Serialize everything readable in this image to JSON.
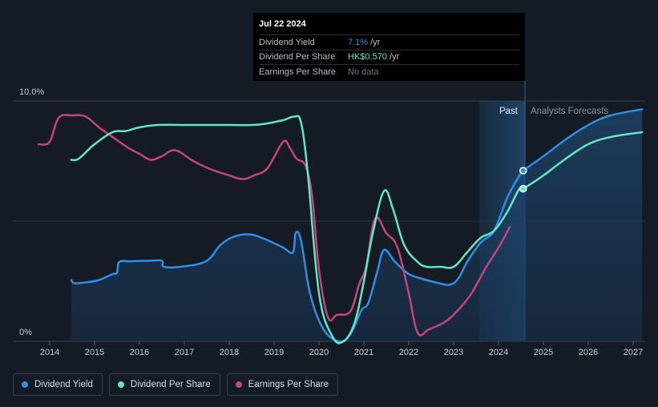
{
  "chart_data": {
    "type": "line",
    "y_axis": {
      "min": 0,
      "max": 10,
      "ticks": [
        "10.0%",
        "0%"
      ]
    },
    "x_ticks": [
      "2014",
      "2015",
      "2016",
      "2017",
      "2018",
      "2019",
      "2020",
      "2021",
      "2022",
      "2023",
      "2024",
      "2025",
      "2026",
      "2027"
    ],
    "regions": {
      "past_label": "Past",
      "forecast_label": "Analysts Forecasts"
    },
    "series": [
      {
        "name": "Dividend Yield",
        "color": "#2d8fe6",
        "fill": true,
        "points": [
          [
            2014.48,
            2.55
          ],
          [
            2014.55,
            2.42
          ],
          [
            2014.8,
            2.45
          ],
          [
            2015.1,
            2.55
          ],
          [
            2015.4,
            2.8
          ],
          [
            2015.5,
            2.85
          ],
          [
            2015.55,
            3.3
          ],
          [
            2015.8,
            3.33
          ],
          [
            2016.2,
            3.35
          ],
          [
            2016.5,
            3.35
          ],
          [
            2016.55,
            3.1
          ],
          [
            2017.0,
            3.12
          ],
          [
            2017.5,
            3.35
          ],
          [
            2017.8,
            4.0
          ],
          [
            2018.1,
            4.35
          ],
          [
            2018.45,
            4.45
          ],
          [
            2018.8,
            4.25
          ],
          [
            2019.2,
            3.9
          ],
          [
            2019.42,
            3.7
          ],
          [
            2019.48,
            4.5
          ],
          [
            2019.6,
            4.2
          ],
          [
            2019.8,
            2.0
          ],
          [
            2020.1,
            0.5
          ],
          [
            2020.45,
            0.0
          ],
          [
            2020.7,
            0.3
          ],
          [
            2020.95,
            1.3
          ],
          [
            2021.1,
            1.6
          ],
          [
            2021.3,
            2.9
          ],
          [
            2021.45,
            3.8
          ],
          [
            2021.7,
            3.3
          ],
          [
            2022.0,
            2.8
          ],
          [
            2022.3,
            2.6
          ],
          [
            2022.6,
            2.45
          ],
          [
            2022.9,
            2.35
          ],
          [
            2023.1,
            2.6
          ],
          [
            2023.3,
            3.3
          ],
          [
            2023.6,
            4.1
          ],
          [
            2023.9,
            4.6
          ],
          [
            2024.2,
            6.0
          ],
          [
            2024.5,
            7.0
          ],
          [
            2024.55,
            7.1
          ],
          [
            2025.0,
            7.7
          ],
          [
            2025.5,
            8.4
          ],
          [
            2026.0,
            9.0
          ],
          [
            2026.5,
            9.4
          ],
          [
            2027.2,
            9.65
          ]
        ]
      },
      {
        "name": "Dividend Per Share",
        "color": "#5ee8c8",
        "fill": false,
        "points": [
          [
            2014.48,
            7.55
          ],
          [
            2014.65,
            7.6
          ],
          [
            2015.0,
            8.2
          ],
          [
            2015.4,
            8.7
          ],
          [
            2015.7,
            8.75
          ],
          [
            2016.0,
            8.9
          ],
          [
            2016.4,
            9.0
          ],
          [
            2017.0,
            9.0
          ],
          [
            2017.5,
            9.0
          ],
          [
            2018.0,
            9.0
          ],
          [
            2018.5,
            9.0
          ],
          [
            2018.8,
            9.05
          ],
          [
            2019.2,
            9.2
          ],
          [
            2019.45,
            9.35
          ],
          [
            2019.6,
            9.1
          ],
          [
            2019.75,
            7.0
          ],
          [
            2020.0,
            2.0
          ],
          [
            2020.3,
            0.2
          ],
          [
            2020.55,
            0.0
          ],
          [
            2020.8,
            0.8
          ],
          [
            2021.0,
            2.5
          ],
          [
            2021.2,
            4.5
          ],
          [
            2021.45,
            6.25
          ],
          [
            2021.65,
            5.5
          ],
          [
            2021.9,
            4.0
          ],
          [
            2022.2,
            3.3
          ],
          [
            2022.4,
            3.1
          ],
          [
            2022.7,
            3.1
          ],
          [
            2023.0,
            3.1
          ],
          [
            2023.3,
            3.7
          ],
          [
            2023.6,
            4.3
          ],
          [
            2023.9,
            4.6
          ],
          [
            2024.2,
            5.4
          ],
          [
            2024.45,
            6.3
          ],
          [
            2024.55,
            6.35
          ],
          [
            2025.0,
            6.9
          ],
          [
            2025.5,
            7.6
          ],
          [
            2026.0,
            8.2
          ],
          [
            2026.5,
            8.5
          ],
          [
            2027.2,
            8.7
          ]
        ]
      },
      {
        "name": "Earnings Per Share",
        "color": "#c8427c",
        "fill": false,
        "points": [
          [
            2013.75,
            8.2
          ],
          [
            2014.0,
            8.3
          ],
          [
            2014.2,
            9.3
          ],
          [
            2014.5,
            9.4
          ],
          [
            2014.8,
            9.35
          ],
          [
            2015.1,
            8.9
          ],
          [
            2015.4,
            8.5
          ],
          [
            2015.75,
            8.05
          ],
          [
            2016.0,
            7.8
          ],
          [
            2016.25,
            7.55
          ],
          [
            2016.5,
            7.7
          ],
          [
            2016.8,
            7.95
          ],
          [
            2017.2,
            7.5
          ],
          [
            2017.6,
            7.15
          ],
          [
            2018.0,
            6.9
          ],
          [
            2018.3,
            6.75
          ],
          [
            2018.55,
            6.9
          ],
          [
            2018.85,
            7.2
          ],
          [
            2019.2,
            8.3
          ],
          [
            2019.35,
            8.05
          ],
          [
            2019.5,
            7.6
          ],
          [
            2019.7,
            7.3
          ],
          [
            2019.85,
            6.0
          ],
          [
            2020.0,
            3.0
          ],
          [
            2020.2,
            1.0
          ],
          [
            2020.4,
            1.1
          ],
          [
            2020.7,
            1.25
          ],
          [
            2020.9,
            2.4
          ],
          [
            2021.05,
            3.1
          ],
          [
            2021.25,
            5.1
          ],
          [
            2021.5,
            4.5
          ],
          [
            2021.75,
            3.9
          ],
          [
            2022.0,
            2.0
          ],
          [
            2022.2,
            0.35
          ],
          [
            2022.45,
            0.5
          ],
          [
            2022.8,
            0.8
          ],
          [
            2023.1,
            1.3
          ],
          [
            2023.4,
            2.0
          ],
          [
            2023.7,
            3.0
          ],
          [
            2024.0,
            3.9
          ],
          [
            2024.25,
            4.75
          ]
        ]
      }
    ],
    "highlight": {
      "x": 2024.55,
      "values": [
        7.1,
        6.35
      ]
    },
    "tooltip": {
      "date": "Jul 22 2024",
      "rows": [
        {
          "label": "Dividend Yield",
          "value": "7.1%",
          "unit": "/yr",
          "color": "#2d8fe6"
        },
        {
          "label": "Dividend Per Share",
          "value": "HK$0.570",
          "unit": "/yr",
          "color": "#5ee8c8"
        },
        {
          "label": "Earnings Per Share",
          "value": "No data",
          "unit": "",
          "color": "#6f7680"
        }
      ]
    },
    "legend": [
      {
        "label": "Dividend Yield",
        "color": "#2d8fe6"
      },
      {
        "label": "Dividend Per Share",
        "color": "#5ee8c8"
      },
      {
        "label": "Earnings Per Share",
        "color": "#c8427c"
      }
    ]
  }
}
